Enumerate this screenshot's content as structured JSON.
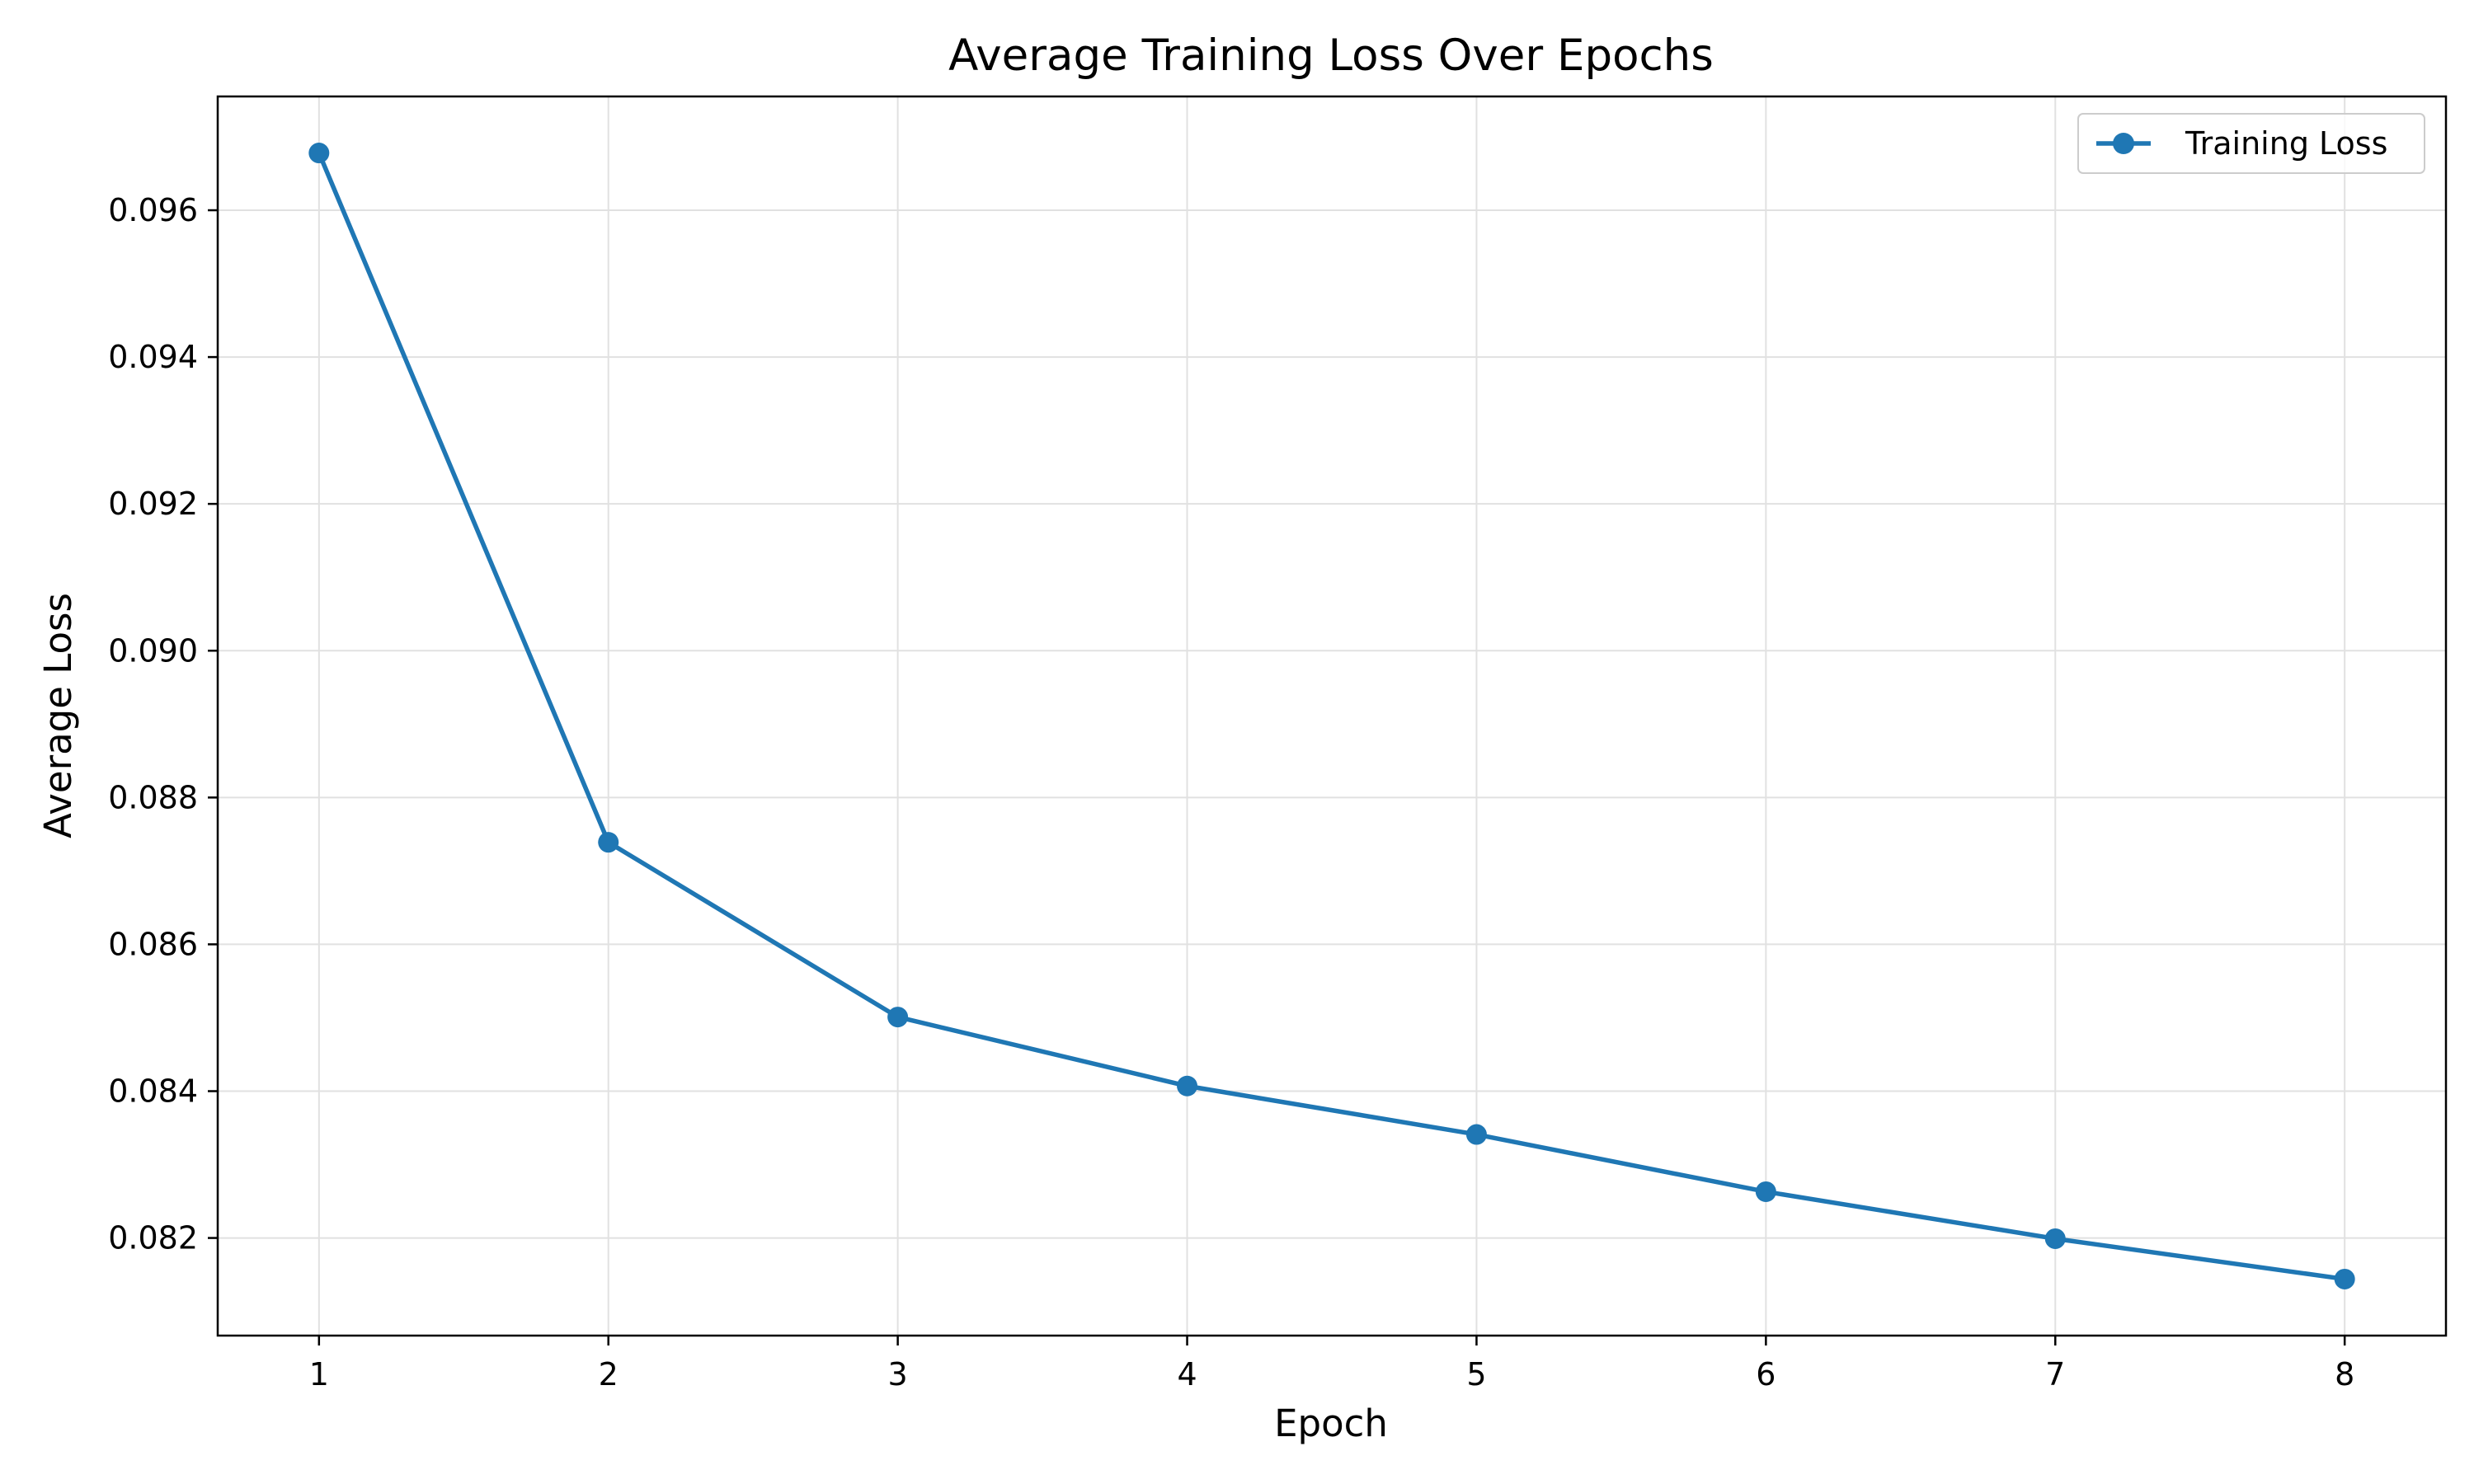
{
  "chart_data": {
    "type": "line",
    "title": "Average Training Loss Over Epochs",
    "xlabel": "Epoch",
    "ylabel": "Average Loss",
    "x": [
      1,
      2,
      3,
      4,
      5,
      6,
      7,
      8
    ],
    "x_ticks": [
      "1",
      "2",
      "3",
      "4",
      "5",
      "6",
      "7",
      "8"
    ],
    "y_ticks": [
      "0.082",
      "0.084",
      "0.086",
      "0.088",
      "0.090",
      "0.092",
      "0.094",
      "0.096"
    ],
    "xlim": [
      0.65,
      8.35
    ],
    "ylim": [
      0.08067,
      0.09755
    ],
    "grid": true,
    "legend_position": "top-right",
    "series": [
      {
        "name": "Training Loss",
        "color": "#1f77b4",
        "marker": "circle",
        "values": [
          0.09678,
          0.08739,
          0.08501,
          0.08407,
          0.08341,
          0.08263,
          0.08199,
          0.08144
        ]
      }
    ]
  }
}
